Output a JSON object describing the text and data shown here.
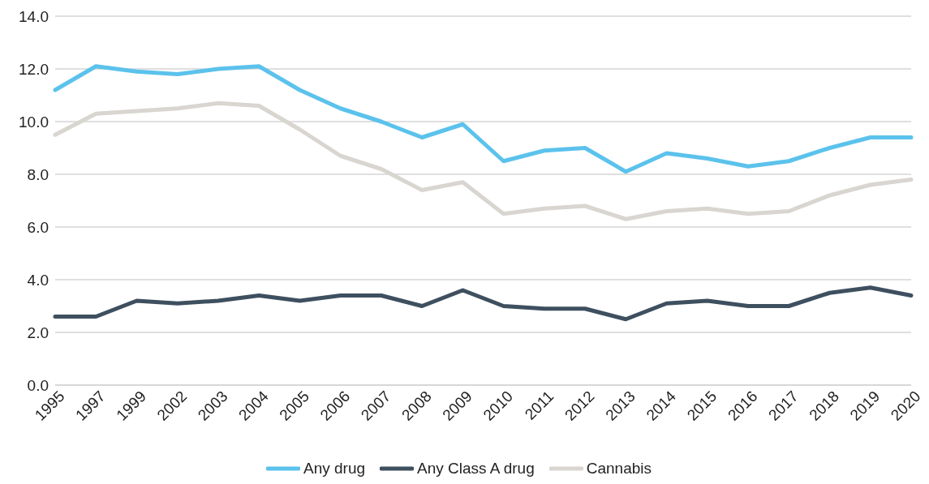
{
  "chart_data": {
    "type": "line",
    "categories": [
      "1995",
      "1997",
      "1999",
      "2002",
      "2003",
      "2004",
      "2005",
      "2006",
      "2007",
      "2008",
      "2009",
      "2010",
      "2011",
      "2012",
      "2013",
      "2014",
      "2015",
      "2016",
      "2017",
      "2018",
      "2019",
      "2020"
    ],
    "series": [
      {
        "name": "Any drug",
        "color": "#5bc2ec",
        "values": [
          11.2,
          12.1,
          11.9,
          11.8,
          12.0,
          12.1,
          11.2,
          10.5,
          10.0,
          9.4,
          9.9,
          8.5,
          8.9,
          9.0,
          8.1,
          8.8,
          8.6,
          8.3,
          8.5,
          9.0,
          9.4,
          9.4
        ]
      },
      {
        "name": "Any Class A drug",
        "color": "#3e4f5f",
        "values": [
          2.6,
          2.6,
          3.2,
          3.1,
          3.2,
          3.4,
          3.2,
          3.4,
          3.4,
          3.0,
          3.6,
          3.0,
          2.9,
          2.9,
          2.5,
          3.1,
          3.2,
          3.0,
          3.0,
          3.5,
          3.7,
          3.4
        ]
      },
      {
        "name": "Cannabis",
        "color": "#d9d5d0",
        "values": [
          9.5,
          10.3,
          10.4,
          10.5,
          10.7,
          10.6,
          9.7,
          8.7,
          8.2,
          7.4,
          7.7,
          6.5,
          6.7,
          6.8,
          6.3,
          6.6,
          6.7,
          6.5,
          6.6,
          7.2,
          7.6,
          7.8
        ]
      }
    ],
    "ylim": [
      0,
      14
    ],
    "yticks": [
      {
        "value": 0,
        "label": "0.0"
      },
      {
        "value": 2,
        "label": "2.0"
      },
      {
        "value": 4,
        "label": "4.0"
      },
      {
        "value": 6,
        "label": "6.0"
      },
      {
        "value": 8,
        "label": "8.0"
      },
      {
        "value": 10,
        "label": "10.0"
      },
      {
        "value": 12,
        "label": "12.0"
      },
      {
        "value": 14,
        "label": "14.0"
      }
    ],
    "grid": "y",
    "legend": "bottom",
    "marker": "none",
    "line_style": "solid"
  }
}
